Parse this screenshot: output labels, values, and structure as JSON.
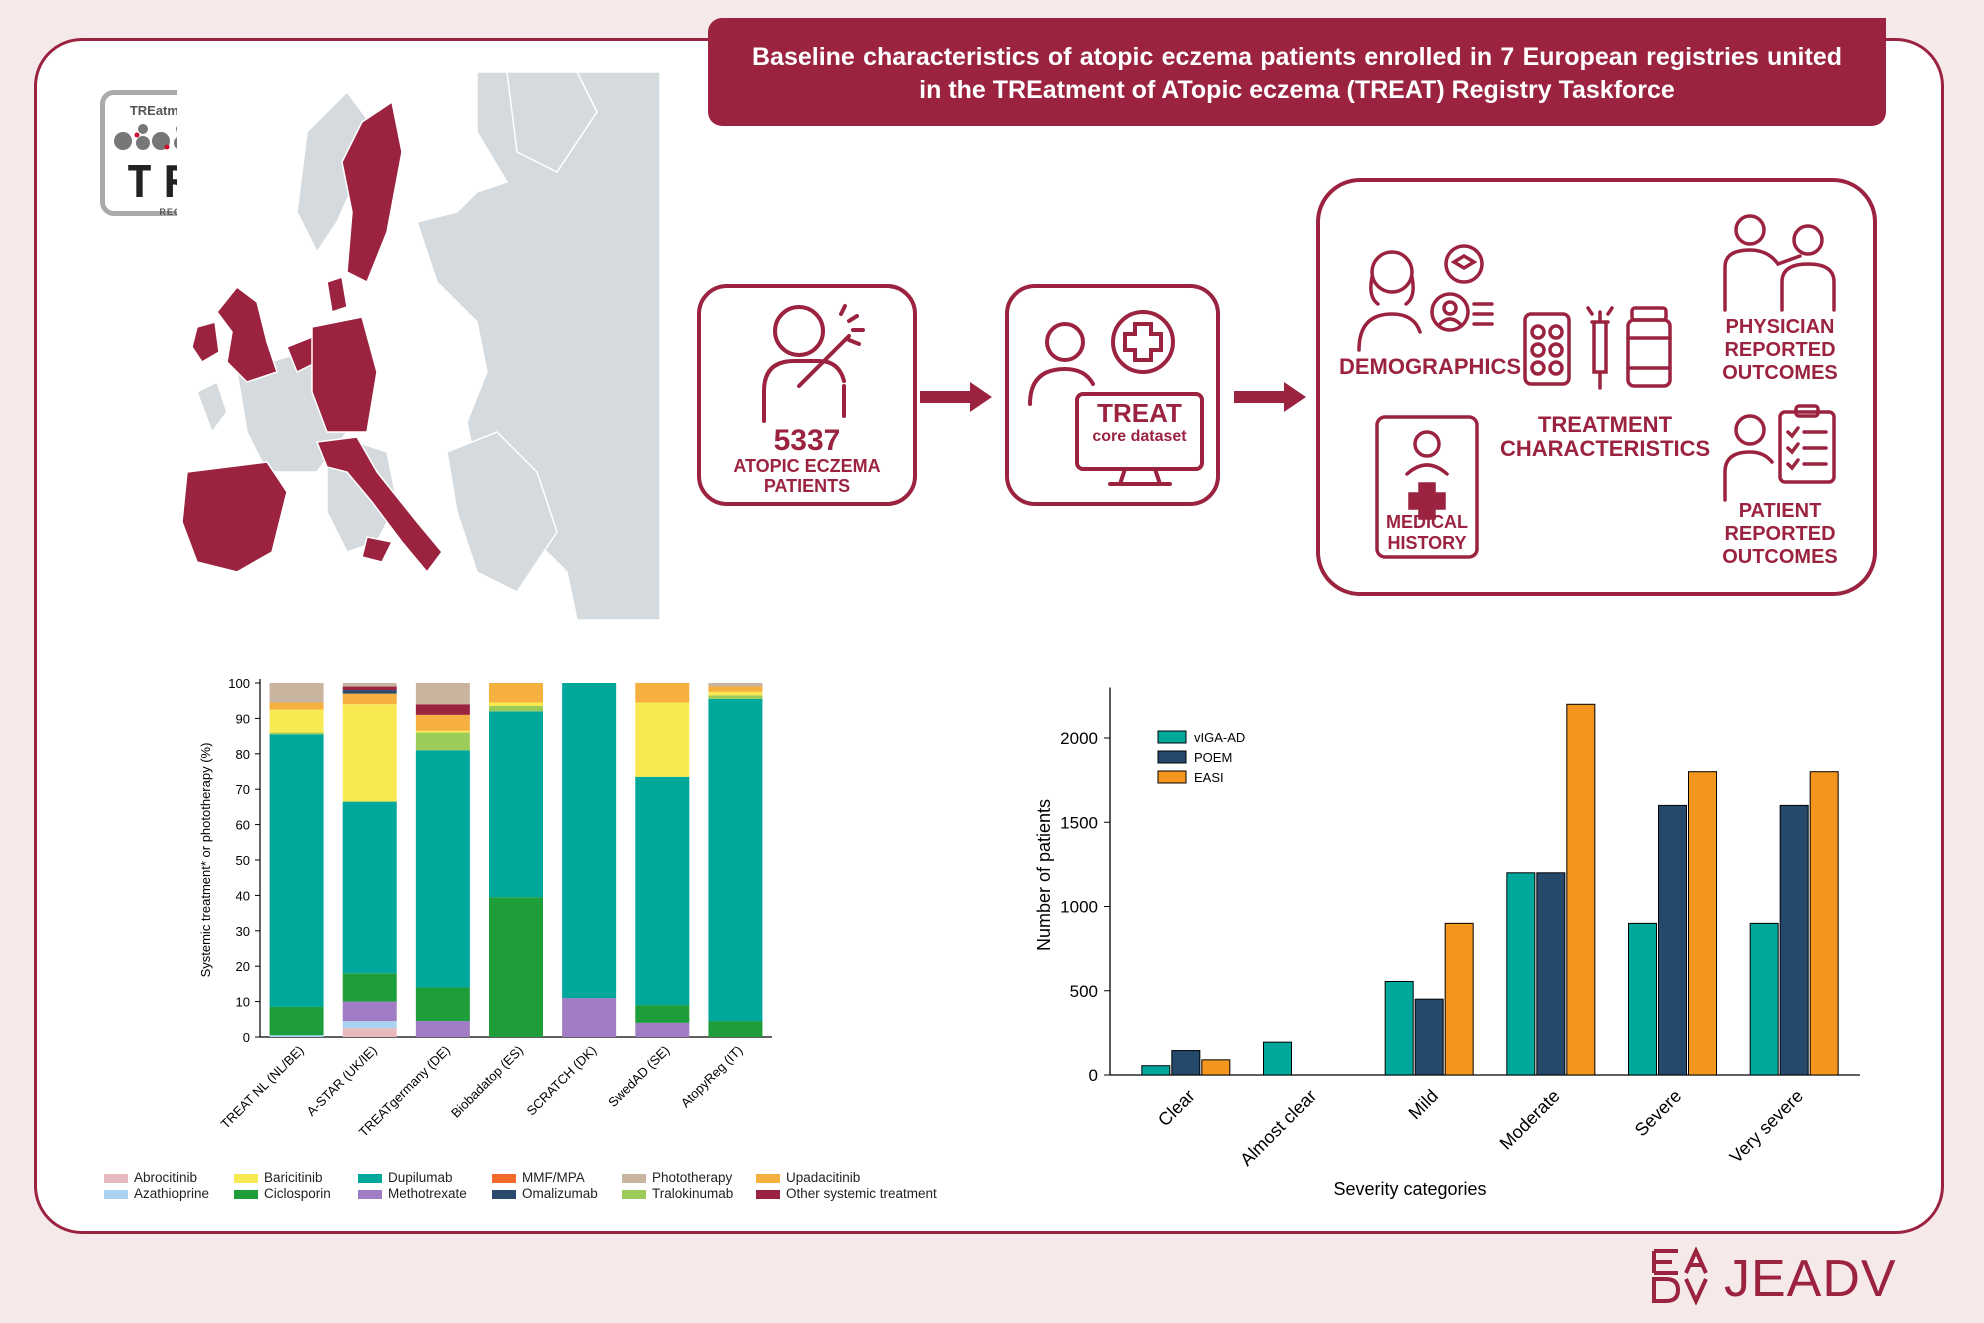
{
  "title": "Baseline characteristics of atopic eczema patients enrolled in 7 European registries united in the TREatment of ATopic eczema (TREAT) Registry Taskforce",
  "logo": {
    "top": "TREatment of ATopic eczema",
    "main": "TREAT",
    "bottom": "REGISTRY TASKFORCE"
  },
  "flow": {
    "patients_count": "5337",
    "patients_label_line1": "ATOPIC ECZEMA",
    "patients_label_line2": "PATIENTS",
    "core_title": "TREAT",
    "core_sub": "core dataset",
    "outcomes": {
      "demographics": "DEMOGRAPHICS",
      "medical_history_line1": "MEDICAL",
      "medical_history_line2": "HISTORY",
      "treatment_line1": "TREATMENT",
      "treatment_line2": "CHARACTERISTICS",
      "physician_line1": "PHYSICIAN",
      "physician_line2": "REPORTED",
      "physician_line3": "OUTCOMES",
      "patient_line1": "PATIENT",
      "patient_line2": "REPORTED",
      "patient_line3": "OUTCOMES"
    }
  },
  "colors": {
    "brand": "#9b2340",
    "map_highlight": "#9b2340",
    "map_base": "#d4dadd"
  },
  "chart_data": [
    {
      "type": "bar",
      "stacked": true,
      "title": "",
      "ylabel": "Systemic treatment* or phototherapy (%)",
      "xlabel": "",
      "ylim": [
        0,
        100
      ],
      "yticks": [
        0,
        10,
        20,
        30,
        40,
        50,
        60,
        70,
        80,
        90,
        100
      ],
      "categories": [
        "TREAT NL (NL/BE)",
        "A-STAR (UK/IE)",
        "TREATgermany (DE)",
        "Biobadatop (ES)",
        "SCRATCH (DK)",
        "SwedAD (SE)",
        "AtopyReg (IT)"
      ],
      "series": [
        {
          "name": "Abrocitinib",
          "color": "#e8b9bd",
          "values": [
            0,
            2.5,
            0,
            0,
            0,
            0,
            0
          ]
        },
        {
          "name": "Azathioprine",
          "color": "#a9d3f0",
          "values": [
            0.5,
            2,
            0,
            0,
            0,
            0,
            0
          ]
        },
        {
          "name": "Methotrexate",
          "color": "#a07cc5",
          "values": [
            0,
            5.5,
            4.5,
            0,
            11,
            4,
            0
          ]
        },
        {
          "name": "Ciclosporin",
          "color": "#1e9e3a",
          "values": [
            8,
            8,
            9.5,
            39.5,
            0,
            5,
            4.5
          ]
        },
        {
          "name": "Dupilumab",
          "color": "#00a89c",
          "values": [
            77,
            48.5,
            67,
            52.5,
            89,
            64.5,
            91
          ]
        },
        {
          "name": "MMF/MPA",
          "color": "#f26a2a",
          "values": [
            0,
            0,
            0,
            0,
            0,
            0,
            0
          ]
        },
        {
          "name": "Tralokinumab",
          "color": "#9dcb5a",
          "values": [
            0.5,
            0,
            5,
            1.5,
            0,
            0,
            1
          ]
        },
        {
          "name": "Baricitinib",
          "color": "#f8e851",
          "values": [
            6.5,
            27.5,
            0.5,
            1,
            0,
            21,
            1
          ]
        },
        {
          "name": "Upadacitinib",
          "color": "#f6b040",
          "values": [
            2,
            3,
            4.5,
            5.5,
            0,
            5.5,
            1.5
          ]
        },
        {
          "name": "Omalizumab",
          "color": "#2a4a6b",
          "values": [
            0,
            1,
            0,
            0,
            0,
            0,
            0
          ]
        },
        {
          "name": "Other systemic treatment",
          "color": "#9b2340",
          "values": [
            0,
            1,
            3,
            0,
            0,
            0,
            0
          ]
        },
        {
          "name": "Phototherapy",
          "color": "#c9b4a0",
          "values": [
            5.5,
            1,
            6,
            0,
            0,
            0,
            1
          ]
        }
      ],
      "legend_order": [
        "Abrocitinib",
        "Azathioprine",
        "Baricitinib",
        "Ciclosporin",
        "Dupilumab",
        "Methotrexate",
        "MMF/MPA",
        "Omalizumab",
        "Phototherapy",
        "Tralokinumab",
        "Upadacitinib",
        "Other systemic treatment"
      ],
      "legend_position": "bottom"
    },
    {
      "type": "bar",
      "title": "",
      "xlabel": "Severity categories",
      "ylabel": "Number of patients",
      "ylim": [
        0,
        2300
      ],
      "yticks": [
        0,
        500,
        1000,
        1500,
        2000
      ],
      "categories": [
        "Clear",
        "Almost clear",
        "Mild",
        "Moderate",
        "Severe",
        "Very severe"
      ],
      "series": [
        {
          "name": "vIGA-AD",
          "color": "#00a89c",
          "values": [
            55,
            195,
            555,
            1200,
            900,
            900
          ]
        },
        {
          "name": "POEM",
          "color": "#24496b",
          "values": [
            145,
            0,
            450,
            1200,
            1600,
            1600
          ]
        },
        {
          "name": "EASI",
          "color": "#f4961e",
          "values": [
            90,
            0,
            900,
            2200,
            1800,
            1800
          ]
        }
      ],
      "legend_position": "top-left"
    }
  ],
  "journal": "JEADV"
}
